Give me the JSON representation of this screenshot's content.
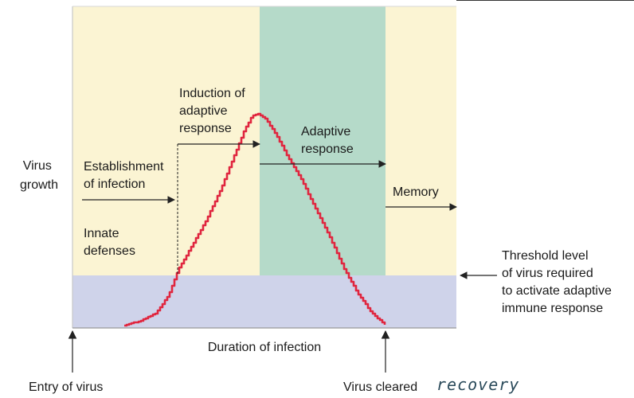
{
  "labels": {
    "y_axis": [
      "Virus",
      "growth"
    ],
    "establishment": [
      "Establishment",
      "of infection"
    ],
    "innate": [
      "Innate",
      "defenses"
    ],
    "induction": [
      "Induction of",
      "adaptive",
      "response"
    ],
    "adaptive": [
      "Adaptive",
      "response"
    ],
    "memory": "Memory",
    "threshold": [
      "Threshold level",
      "of virus required",
      "to activate adaptive",
      "immune response"
    ],
    "x_axis": "Duration of infection",
    "entry": "Entry of virus",
    "cleared": "Virus cleared",
    "handwritten_note": "recovery"
  },
  "colors": {
    "innate_phase": "#fbf4d3",
    "adaptive_phase": "#b5dac9",
    "threshold_band": "#cfd3ea",
    "virus_curve": "#e0263f",
    "frame": "#d3d3d3"
  }
}
